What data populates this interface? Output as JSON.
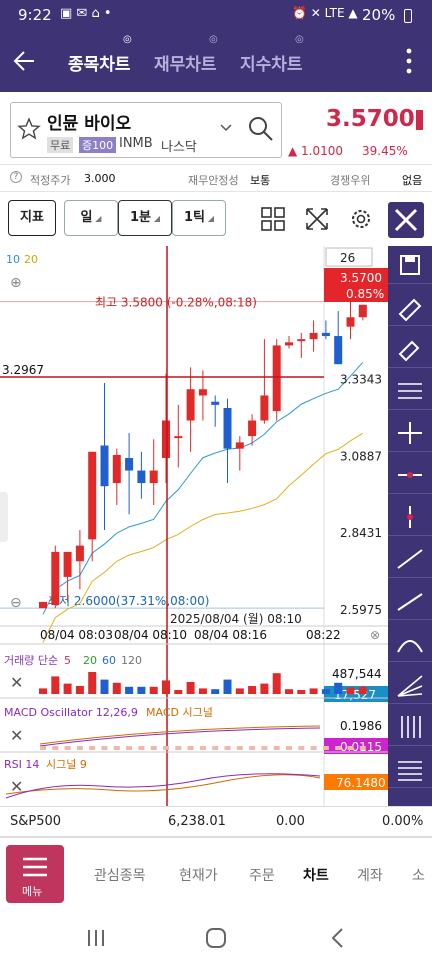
{
  "status": {
    "time": "9:22",
    "battery": "20%",
    "network": "LTE"
  },
  "app": {
    "tabs": [
      "종목차트",
      "재무차트",
      "지수차트"
    ],
    "active_tab": 0,
    "back_icon": "arrow-left-icon",
    "more_icon": "more-vertical-icon"
  },
  "stock": {
    "name": "인뮨 바이오",
    "tag_free": "무료",
    "tag_margin": "증100",
    "ticker": "INMB",
    "exchange": "나스닥",
    "price": "3.5700",
    "change": "▲ 1.0100",
    "change_pct": "39.45%",
    "up_color": "#d0284a"
  },
  "info": {
    "fair_label": "적정주가",
    "fair_value": "3.000",
    "fin_label": "재무안정성",
    "fin_value": "보통",
    "comp_label": "경쟁우위",
    "comp_value": "없음"
  },
  "toolbar": {
    "indicator_label": "지표",
    "period_label": "일",
    "min_label": "1분",
    "tick_label": "1틱",
    "count": "26"
  },
  "chart": {
    "ma_labels": [
      "10",
      "20"
    ],
    "high_text": "최고 3.5800 (-0.28%,08:18)",
    "low_text": "최저 2.6000(37.31%,08:00)",
    "crosshair_price": "3.2967",
    "crosshair_time": "2025/08/04 (월) 08:10",
    "price_ticks": [
      "3.3343",
      "3.0887",
      "2.8431",
      "2.5975"
    ],
    "current_price": "3.5700",
    "current_pct": "0.85%",
    "time_ticks": [
      "08/04 08:03",
      "08/04 08:10",
      "08/04 08:16",
      "08:22"
    ],
    "volume_title": "거래량 단순",
    "volume_periods": [
      "5",
      "20",
      "60",
      "120"
    ],
    "volume_max": "487,544",
    "volume_cur": "17,527",
    "macd_title": "MACD Oscillator 12,26,9",
    "macd_sig": "MACD 시그널",
    "macd_val": "0.1986",
    "macd_cur": "0.0115",
    "rsi_title": "RSI 14",
    "rsi_sig": "시그널 9",
    "rsi_cur": "76.1480",
    "candles": [
      {
        "o": 2.6,
        "h": 2.62,
        "l": 2.6,
        "c": 2.62
      },
      {
        "o": 2.61,
        "h": 2.8,
        "l": 2.6,
        "c": 2.78
      },
      {
        "o": 2.7,
        "h": 2.78,
        "l": 2.62,
        "c": 2.78
      },
      {
        "o": 2.75,
        "h": 2.85,
        "l": 2.66,
        "c": 2.8
      },
      {
        "o": 2.82,
        "h": 3.1,
        "l": 2.75,
        "c": 3.1
      },
      {
        "o": 3.12,
        "h": 3.32,
        "l": 2.85,
        "c": 2.99
      },
      {
        "o": 3.0,
        "h": 3.11,
        "l": 2.93,
        "c": 3.09
      },
      {
        "o": 3.08,
        "h": 3.16,
        "l": 2.9,
        "c": 3.04
      },
      {
        "o": 3.04,
        "h": 3.1,
        "l": 2.95,
        "c": 3.0
      },
      {
        "o": 3.0,
        "h": 3.14,
        "l": 2.93,
        "c": 3.04
      },
      {
        "o": 3.08,
        "h": 3.35,
        "l": 3.0,
        "c": 3.2
      },
      {
        "o": 3.15,
        "h": 3.25,
        "l": 3.05,
        "c": 3.15
      },
      {
        "o": 3.2,
        "h": 3.37,
        "l": 3.1,
        "c": 3.3
      },
      {
        "o": 3.28,
        "h": 3.36,
        "l": 3.2,
        "c": 3.3
      },
      {
        "o": 3.26,
        "h": 3.28,
        "l": 3.18,
        "c": 3.25
      },
      {
        "o": 3.24,
        "h": 3.27,
        "l": 3.0,
        "c": 3.11
      },
      {
        "o": 3.11,
        "h": 3.15,
        "l": 3.04,
        "c": 3.13
      },
      {
        "o": 3.15,
        "h": 3.22,
        "l": 3.12,
        "c": 3.2
      },
      {
        "o": 3.2,
        "h": 3.46,
        "l": 3.19,
        "c": 3.28
      },
      {
        "o": 3.23,
        "h": 3.46,
        "l": 3.2,
        "c": 3.44
      },
      {
        "o": 3.44,
        "h": 3.47,
        "l": 3.43,
        "c": 3.45
      },
      {
        "o": 3.46,
        "h": 3.48,
        "l": 3.4,
        "c": 3.46
      },
      {
        "o": 3.46,
        "h": 3.52,
        "l": 3.42,
        "c": 3.48
      },
      {
        "o": 3.48,
        "h": 3.52,
        "l": 3.46,
        "c": 3.47
      },
      {
        "o": 3.47,
        "h": 3.55,
        "l": 3.38,
        "c": 3.38
      },
      {
        "o": 3.5,
        "h": 3.58,
        "l": 3.46,
        "c": 3.53
      },
      {
        "o": 3.53,
        "h": 3.57,
        "l": 3.52,
        "c": 3.57
      }
    ]
  },
  "index": {
    "name": "S&P500",
    "value": "6,238.01",
    "change": "0.00",
    "pct": "0.00%"
  },
  "bottom_nav": {
    "menu_label": "메뉴",
    "items": [
      "관심종목",
      "현재가",
      "주문",
      "차트",
      "계좌",
      "소"
    ],
    "active": 3,
    "menu_color": "#c0355d"
  }
}
